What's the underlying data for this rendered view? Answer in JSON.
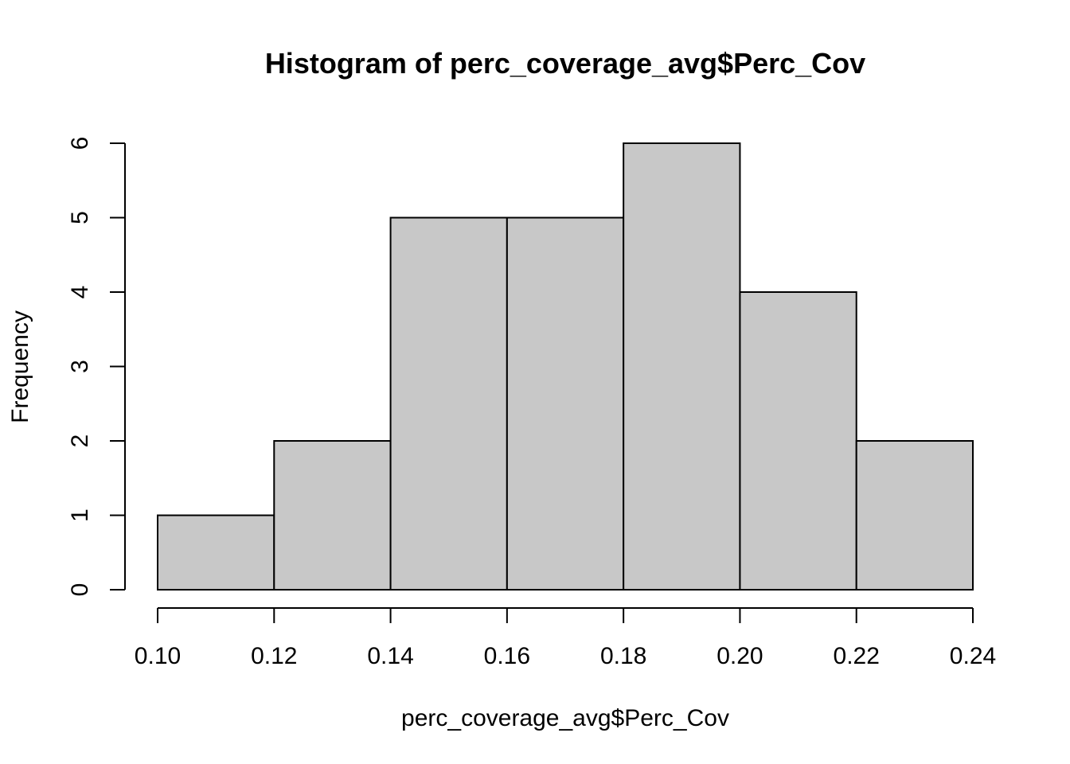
{
  "chart_data": {
    "type": "bar",
    "subtype": "histogram",
    "title": "Histogram of perc_coverage_avg$Perc_Cov",
    "xlabel": "perc_coverage_avg$Perc_Cov",
    "ylabel": "Frequency",
    "bin_edges": [
      0.1,
      0.12,
      0.14,
      0.16,
      0.18,
      0.2,
      0.22,
      0.24
    ],
    "values": [
      1,
      2,
      5,
      5,
      6,
      4,
      2
    ],
    "xlim": [
      0.1,
      0.24
    ],
    "ylim": [
      0,
      6
    ],
    "x_ticks": [
      "0.10",
      "0.12",
      "0.14",
      "0.16",
      "0.18",
      "0.20",
      "0.22",
      "0.24"
    ],
    "y_ticks": [
      "0",
      "1",
      "2",
      "3",
      "4",
      "5",
      "6"
    ],
    "bar_color": "#c8c8c8",
    "grid": false,
    "legend": "none"
  }
}
